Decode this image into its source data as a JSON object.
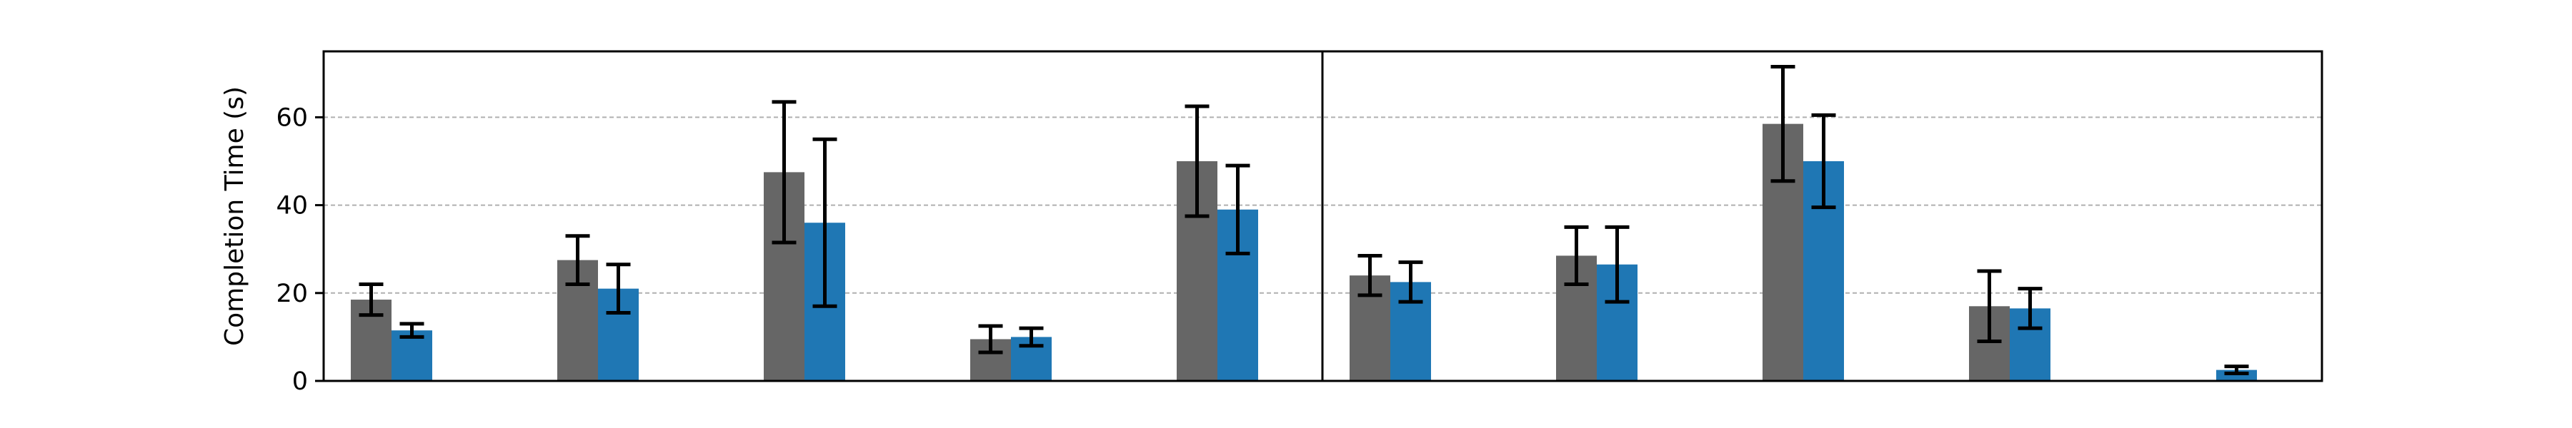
{
  "chart_data": {
    "type": "bar",
    "ylabel": "Completion Time (s)",
    "ylim": [
      0,
      75
    ],
    "yticks": [
      0,
      20,
      40,
      60
    ],
    "grid": "y-dashed",
    "series_colors": [
      "#666666",
      "#1f77b4"
    ],
    "error_color": "#000000",
    "panels": [
      {
        "groups": [
          {
            "values": [
              18.5,
              11.5
            ],
            "errors": [
              3.5,
              1.5
            ]
          },
          {
            "values": [
              27.5,
              21.0
            ],
            "errors": [
              5.5,
              5.5
            ]
          },
          {
            "values": [
              47.5,
              36.0
            ],
            "errors": [
              16.0,
              19.0
            ]
          },
          {
            "values": [
              9.5,
              10.0
            ],
            "errors": [
              3.0,
              2.0
            ]
          },
          {
            "values": [
              50.0,
              39.0
            ],
            "errors": [
              12.5,
              10.0
            ]
          }
        ]
      },
      {
        "groups": [
          {
            "values": [
              24.0,
              22.5
            ],
            "errors": [
              4.5,
              4.5
            ]
          },
          {
            "values": [
              28.5,
              26.5
            ],
            "errors": [
              6.5,
              8.5
            ]
          },
          {
            "values": [
              58.5,
              50.0
            ],
            "errors": [
              13.0,
              10.5
            ]
          },
          {
            "values": [
              17.0,
              16.5
            ],
            "errors": [
              8.0,
              4.5
            ]
          },
          {
            "values": [
              null,
              2.5
            ],
            "errors": [
              null,
              0.8
            ]
          }
        ]
      }
    ]
  }
}
